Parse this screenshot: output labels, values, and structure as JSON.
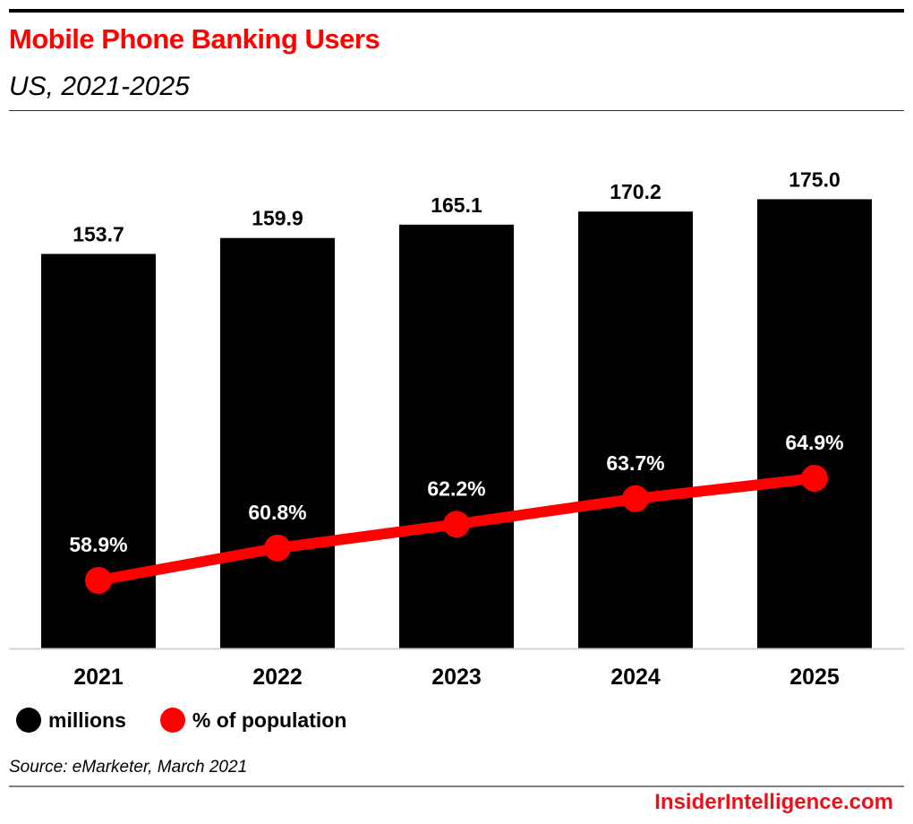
{
  "header": {
    "title": "Mobile Phone Banking Users",
    "subtitle": "US, 2021-2025"
  },
  "colors": {
    "bar": "#000000",
    "line": "#ff0000",
    "title": "#ff0000",
    "axis": "#c8d4e0",
    "brand": "#e4141e"
  },
  "chart_data": {
    "type": "bar",
    "title": "Mobile Phone Banking Users",
    "subtitle": "US, 2021-2025",
    "categories": [
      "2021",
      "2022",
      "2023",
      "2024",
      "2025"
    ],
    "xlabel": "",
    "ylabel": "",
    "grid": false,
    "legend_position": "bottom-left",
    "series": [
      {
        "name": "millions",
        "type": "bar",
        "values": [
          153.7,
          159.9,
          165.1,
          170.2,
          175.0
        ],
        "labels": [
          "153.7",
          "159.9",
          "165.1",
          "170.2",
          "175.0"
        ],
        "color": "#000000"
      },
      {
        "name": "% of population",
        "type": "line",
        "values": [
          58.9,
          60.8,
          62.2,
          63.7,
          64.9
        ],
        "labels": [
          "58.9%",
          "60.8%",
          "62.2%",
          "63.7%",
          "64.9%"
        ],
        "color": "#ff0000"
      }
    ]
  },
  "legend": {
    "items": [
      {
        "label": "millions",
        "color": "#000000"
      },
      {
        "label": "% of population",
        "color": "#ff0000"
      }
    ]
  },
  "footer": {
    "source": "Source: eMarketer, March 2021",
    "brand": "InsiderIntelligence.com"
  }
}
